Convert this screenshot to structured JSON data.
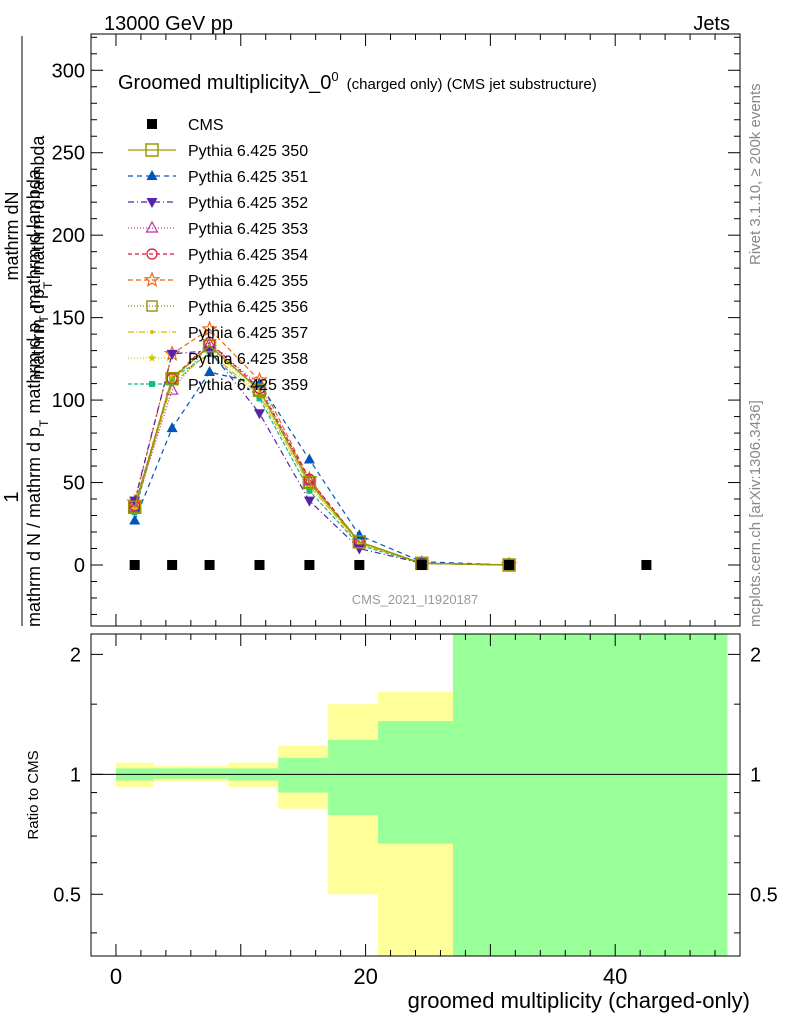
{
  "header": {
    "left": "13000 GeV pp",
    "right": "Jets"
  },
  "side": {
    "rivet": "Rivet 3.1.10, ≥ 200k events",
    "mcplots": "mcplots.cern.ch [arXiv:1306.3436]"
  },
  "chart_data": [
    {
      "type": "line",
      "title": "Groomed multiplicityλ_0",
      "title_sup": "0",
      "title_suffix": "(charged only) (CMS jet substructure)",
      "ylabel_num": "1",
      "ylabel_den": "mathrm d N / mathrm d p_T mathrm d p_T mathrm d lambda",
      "ylabel_rhs": "mathrm d^2N",
      "ylabel_frac_num": "mathrm dN",
      "ylabel_frac_den": "mathrm d p_T mathrm d p_T mathrm d lambda",
      "ylabel_full_den": "mathrm d N / mathrm d p",
      "ylabel_full_den2": "T",
      "ylabel_full_den3": "mathrm d p",
      "ylabel_full_den4": "T",
      "ylabel_full_den5": "mathrm d lambda",
      "ylabel_top": "mathrm dN",
      "ylabel_bottom": "mathrm d p",
      "ylabel_sub": "T",
      "ylabel_bottom2": "mathrm d lambda",
      "xlim": [
        -2,
        50
      ],
      "ylim": [
        -37,
        322
      ],
      "yticks": [
        0,
        50,
        100,
        150,
        200,
        250,
        300
      ],
      "watermark": "CMS_2021_I1920187",
      "series": [
        {
          "name": "CMS",
          "x": [
            1.5,
            4.5,
            7.5,
            11.5,
            15.5,
            19.5,
            24.5,
            31.5,
            42.5
          ],
          "y": [
            0,
            0,
            0,
            0,
            0,
            0,
            0,
            0,
            0
          ]
        },
        {
          "name": "Pythia 6.425 350",
          "x": [
            1.5,
            4.5,
            7.5,
            11.5,
            15.5,
            19.5,
            24.5,
            31.5
          ],
          "y": [
            35,
            113,
            133,
            106,
            50,
            14,
            1,
            0
          ]
        },
        {
          "name": "Pythia 6.425 351",
          "x": [
            1.5,
            4.5,
            7.5,
            11.5,
            15.5,
            19.5,
            24.5,
            31.5
          ],
          "y": [
            27,
            83,
            117,
            110,
            64,
            18,
            2,
            0
          ]
        },
        {
          "name": "Pythia 6.425 352",
          "x": [
            1.5,
            4.5,
            7.5,
            11.5,
            15.5,
            19.5,
            24.5,
            31.5
          ],
          "y": [
            39,
            128,
            130,
            92,
            39,
            10,
            1,
            0
          ]
        },
        {
          "name": "Pythia 6.425 353",
          "x": [
            1.5,
            4.5,
            7.5,
            11.5,
            15.5,
            19.5,
            24.5,
            31.5
          ],
          "y": [
            35,
            106,
            134,
            109,
            51,
            14,
            1,
            0
          ]
        },
        {
          "name": "Pythia 6.425 354",
          "x": [
            1.5,
            4.5,
            7.5,
            11.5,
            15.5,
            19.5,
            24.5,
            31.5
          ],
          "y": [
            36,
            113,
            135,
            107,
            52,
            14,
            1,
            0
          ]
        },
        {
          "name": "Pythia 6.425 355",
          "x": [
            1.5,
            4.5,
            7.5,
            11.5,
            15.5,
            19.5,
            24.5,
            31.5
          ],
          "y": [
            38,
            128,
            143,
            112,
            52,
            14,
            1,
            0
          ]
        },
        {
          "name": "Pythia 6.425 356",
          "x": [
            1.5,
            4.5,
            7.5,
            11.5,
            15.5,
            19.5,
            24.5,
            31.5
          ],
          "y": [
            35,
            113,
            133,
            106,
            50,
            14,
            1,
            0
          ]
        },
        {
          "name": "Pythia 6.425 357",
          "x": [
            1.5,
            4.5,
            7.5,
            11.5,
            15.5,
            19.5,
            24.5,
            31.5
          ],
          "y": [
            34,
            110,
            129,
            103,
            48,
            13,
            1,
            0
          ]
        },
        {
          "name": "Pythia 6.425 358",
          "x": [
            1.5,
            4.5,
            7.5,
            11.5,
            15.5,
            19.5,
            24.5,
            31.5
          ],
          "y": [
            36,
            114,
            132,
            104,
            48,
            13,
            1,
            0
          ]
        },
        {
          "name": "Pythia 6.425 359",
          "x": [
            1.5,
            4.5,
            7.5,
            11.5,
            15.5,
            19.5,
            24.5,
            31.5
          ],
          "y": [
            32,
            113,
            128,
            101,
            45,
            12,
            1,
            0
          ]
        }
      ],
      "colors": {
        "CMS": "#000000",
        "Pythia 6.425 350": "#999900",
        "Pythia 6.425 351": "#0055bb",
        "Pythia 6.425 352": "#5522aa",
        "Pythia 6.425 353": "#bb3399",
        "Pythia 6.425 354": "#dd1133",
        "Pythia 6.425 355": "#ee6611",
        "Pythia 6.425 356": "#888800",
        "Pythia 6.425 357": "#ddbb00",
        "Pythia 6.425 358": "#cccc00",
        "Pythia 6.425 359": "#11bb88"
      },
      "legend_placement": "top-left"
    },
    {
      "type": "area",
      "xlabel": "groomed multiplicity (charged-only)",
      "ylabel": "Ratio to CMS",
      "xlim": [
        -2,
        50
      ],
      "ylim": [
        0.35,
        2.25
      ],
      "xticks": [
        0,
        20,
        40
      ],
      "yticks": [
        0.5,
        1,
        2
      ],
      "bins": [
        {
          "x0": 0,
          "x1": 3,
          "yellow": [
            0.93,
            1.07
          ],
          "green": [
            0.965,
            1.035
          ]
        },
        {
          "x0": 3,
          "x1": 6,
          "yellow": [
            0.96,
            1.05
          ],
          "green": [
            0.975,
            1.035
          ]
        },
        {
          "x0": 6,
          "x1": 9,
          "yellow": [
            0.96,
            1.05
          ],
          "green": [
            0.975,
            1.035
          ]
        },
        {
          "x0": 9,
          "x1": 13,
          "yellow": [
            0.93,
            1.07
          ],
          "green": [
            0.965,
            1.035
          ]
        },
        {
          "x0": 13,
          "x1": 17,
          "yellow": [
            0.82,
            1.18
          ],
          "green": [
            0.9,
            1.1
          ]
        },
        {
          "x0": 17,
          "x1": 21,
          "yellow": [
            0.5,
            1.5
          ],
          "green": [
            0.79,
            1.22
          ]
        },
        {
          "x0": 21,
          "x1": 27,
          "yellow": [
            0.35,
            1.61
          ],
          "green": [
            0.67,
            1.36
          ]
        },
        {
          "x0": 27,
          "x1": 49,
          "yellow": [
            0.35,
            2.25
          ],
          "green": [
            0.35,
            2.25
          ]
        }
      ],
      "colors": {
        "yellow": "#ffff99",
        "green": "#99ff99"
      }
    }
  ]
}
